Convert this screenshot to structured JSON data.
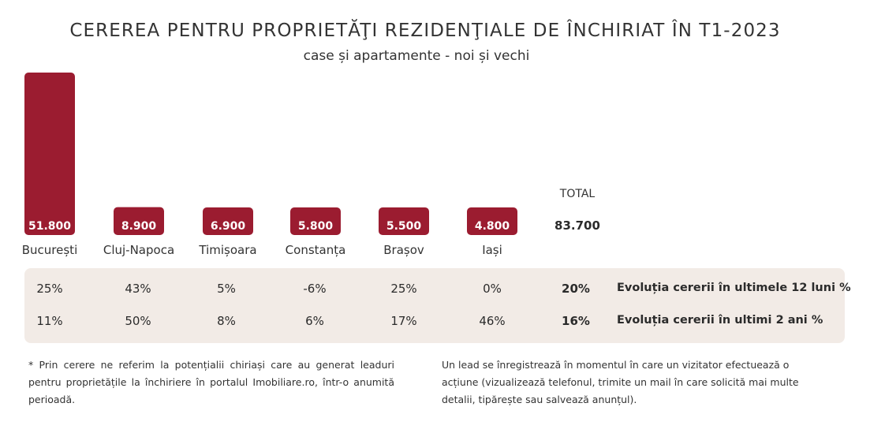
{
  "title": "CEREREA PENTRU PROPRIETĂŢI REZIDENŢIALE DE ÎNCHIRIAT ÎN T1-2023",
  "subtitle": "case și apartamente - noi și vechi",
  "colors": {
    "bar": "#9b1c30",
    "panel": "#f2ebe6"
  },
  "chart_data": {
    "type": "bar",
    "title": "CEREREA PENTRU PROPRIETĂŢI REZIDENŢIALE DE ÎNCHIRIAT ÎN T1-2023",
    "subtitle": "case și apartamente - noi și vechi",
    "categories": [
      "București",
      "Cluj-Napoca",
      "Timișoara",
      "Constanța",
      "Brașov",
      "Iași"
    ],
    "values": [
      51800,
      8900,
      6900,
      5800,
      5500,
      4800
    ],
    "value_labels": [
      "51.800",
      "8.900",
      "6.900",
      "5.800",
      "5.500",
      "4.800"
    ],
    "total_label": "TOTAL",
    "total_value": "83.700",
    "grid": false,
    "legend": "none"
  },
  "evolution": {
    "rows": [
      {
        "label": "Evoluția cererii în ultimele 12 luni %",
        "values": [
          "25%",
          "43%",
          "5%",
          "-6%",
          "25%",
          "0%"
        ],
        "total": "20%"
      },
      {
        "label": "Evoluția cererii în ultimi 2 ani %",
        "values": [
          "11%",
          "50%",
          "8%",
          "6%",
          "17%",
          "46%"
        ],
        "total": "16%"
      }
    ]
  },
  "footnotes": {
    "left": "* Prin cerere ne referim la potențialii chiriași care au generat leaduri pentru proprietățile la închiriere în portalul Imobiliare.ro, într-o anumită perioadă.",
    "right": "Un lead se înregistrează în momentul în care un vizitator efectuează o acțiune (vizualizează telefonul, trimite un mail în care solicită mai multe detalii, tipărește sau salvează anunțul)."
  }
}
